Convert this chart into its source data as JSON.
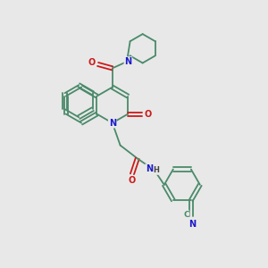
{
  "bg_color": "#e8e8e8",
  "bond_color": "#4a8a6a",
  "atom_colors": {
    "N": "#1a1acc",
    "O": "#cc1a1a",
    "C": "#4a8a6a",
    "H": "#444444"
  }
}
